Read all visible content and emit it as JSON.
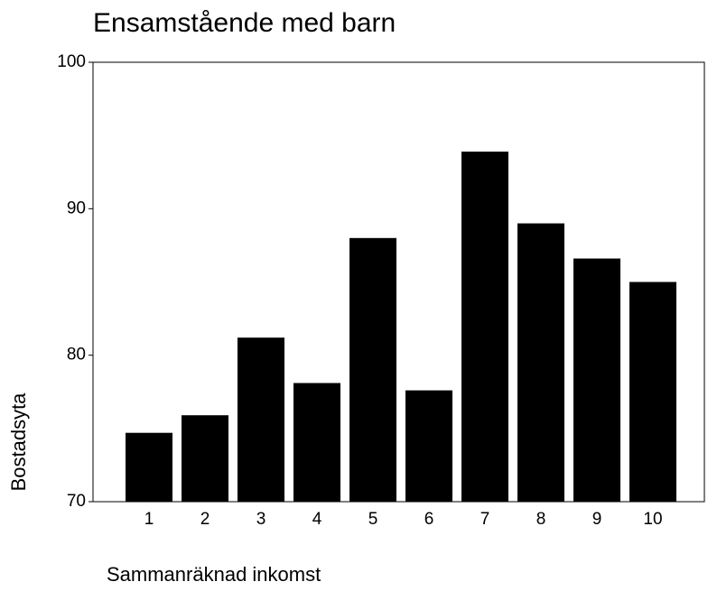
{
  "chart_data": {
    "type": "bar",
    "title": "Ensamstående med barn",
    "x_label": "Sammanräknad inkomst",
    "y_label": "Bostadsyta",
    "categories": [
      "1",
      "2",
      "3",
      "4",
      "5",
      "6",
      "7",
      "8",
      "9",
      "10"
    ],
    "values": [
      74.7,
      75.9,
      81.2,
      78.1,
      88.0,
      77.6,
      93.9,
      89.0,
      86.6,
      85.0
    ],
    "color": "#000000",
    "ylim": [
      70,
      100
    ],
    "yticks": [
      70,
      80,
      90,
      100
    ],
    "grid": false
  }
}
